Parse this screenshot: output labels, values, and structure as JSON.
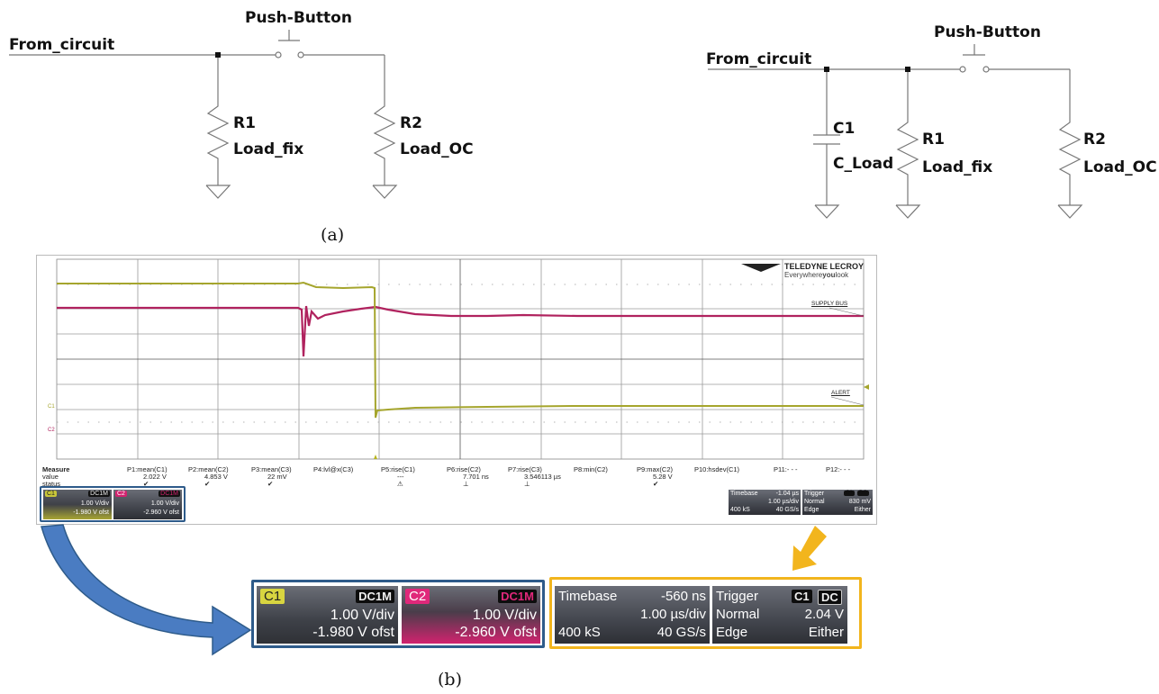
{
  "schematic_a": {
    "input_label": "From_circuit",
    "button_label": "Push-Button",
    "r1_name": "R1",
    "r1_value": "Load_fix",
    "r2_name": "R2",
    "r2_value": "Load_OC",
    "caption": "(a)"
  },
  "schematic_b": {
    "input_label": "From_circuit",
    "button_label": "Push-Button",
    "c1_name": "C1",
    "c1_value": "C_Load",
    "r1_name": "R1",
    "r1_value": "Load_fix",
    "r2_name": "R2",
    "r2_value": "Load_OC"
  },
  "scope": {
    "brand": "TELEDYNE LECROY",
    "tagline_pre": "Everywhere",
    "tagline_bold": "you",
    "tagline_post": "look",
    "trace_labels": {
      "supply": "SUPPLY BUS",
      "alert": "ALERT"
    },
    "colors": {
      "c1": "#a5a52d",
      "c2": "#b0225e",
      "trigger_marker": "#b7b41f",
      "blue_box": "#2e5b8a",
      "orange_box": "#f2b51d"
    },
    "measure": {
      "row_labels": [
        "Measure",
        "value",
        "status"
      ],
      "params": [
        {
          "name": "P1:mean(C1)",
          "value": "2.022 V",
          "status": "✔"
        },
        {
          "name": "P2:mean(C2)",
          "value": "4.853 V",
          "status": "✔"
        },
        {
          "name": "P3:mean(C3)",
          "value": "22 mV",
          "status": "✔"
        },
        {
          "name": "P4:lvl@x(C3)",
          "value": "",
          "status": ""
        },
        {
          "name": "P5:rise(C1)",
          "value": "---",
          "status": "⚠"
        },
        {
          "name": "P6:rise(C2)",
          "value": "7.701 ns",
          "status": "⊥"
        },
        {
          "name": "P7:rise(C3)",
          "value": "3.546113 µs",
          "status": "⊥"
        },
        {
          "name": "P8:min(C2)",
          "value": "",
          "status": ""
        },
        {
          "name": "P9:max(C2)",
          "value": "5.28 V",
          "status": "✔"
        },
        {
          "name": "P10:hsdev(C1)",
          "value": "",
          "status": ""
        },
        {
          "name": "P11:- - -",
          "value": "",
          "status": ""
        },
        {
          "name": "P12:- - -",
          "value": "",
          "status": ""
        }
      ]
    },
    "small_channels": {
      "c1": {
        "tag": "C1",
        "coupling": "DC1M",
        "scale": "1.00 V/div",
        "offset": "-1.980 V ofst"
      },
      "c2": {
        "tag": "C2",
        "coupling": "DC1M",
        "scale": "1.00 V/div",
        "offset": "-2.960 V ofst"
      }
    },
    "small_timebase": {
      "title": "Timebase",
      "delay": "-1.04 µs",
      "rate": "1.00 µs/div",
      "samples": "400 kS",
      "sample_rate": "40 GS/s"
    },
    "small_trigger": {
      "title": "Trigger",
      "source": "C1",
      "coupling": "DC",
      "mode": "Normal",
      "level": "830 mV",
      "type": "Edge",
      "slope": "Either"
    },
    "inner_labels": {
      "c1": "C1",
      "c2": "C2"
    }
  },
  "zoom": {
    "c1": {
      "tag": "C1",
      "coupling": "DC1M",
      "scale": "1.00 V/div",
      "offset": "-1.980 V ofst"
    },
    "c2": {
      "tag": "C2",
      "coupling": "DC1M",
      "scale": "1.00 V/div",
      "offset": "-2.960 V ofst"
    },
    "timebase": {
      "title": "Timebase",
      "delay": "-560 ns",
      "rate": "1.00 µs/div",
      "samples": "400 kS",
      "sample_rate": "40 GS/s"
    },
    "trigger": {
      "title": "Trigger",
      "source": "C1",
      "coupling": "DC",
      "mode": "Normal",
      "level": "2.04 V",
      "type": "Edge",
      "slope": "Either"
    }
  },
  "caption_b": "(b)"
}
